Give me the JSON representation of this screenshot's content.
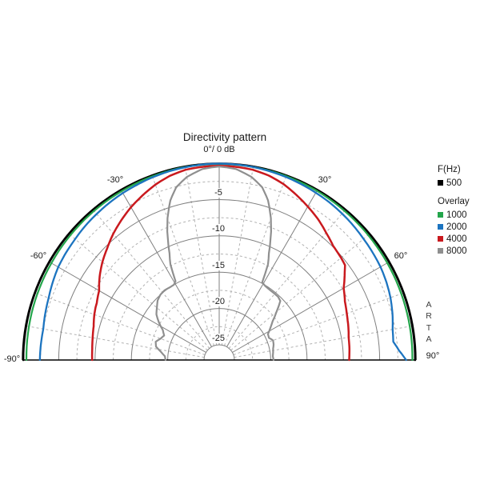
{
  "title": "Directivity pattern",
  "watermark": {
    "letters": [
      "A",
      "R",
      "T",
      "A"
    ]
  },
  "legend": {
    "freq_heading": "F(Hz)",
    "primary": {
      "label": "500",
      "color": "#000000"
    },
    "overlay_heading": "Overlay",
    "overlays": [
      {
        "label": "1000",
        "color": "#23A54B"
      },
      {
        "label": "2000",
        "color": "#1C74C0"
      },
      {
        "label": "4000",
        "color": "#C9191E"
      },
      {
        "label": "8000",
        "color": "#8F8F8F"
      }
    ]
  },
  "chart_data": {
    "type": "line",
    "projection": "half-polar",
    "title": "Directivity pattern",
    "angle_unit": "deg",
    "radial_unit": "dB",
    "radial_range": [
      0,
      -25
    ],
    "legend_position": "right",
    "grid": {
      "circle_solid_step_db": 5,
      "circle_dashed_step_db": 2.5,
      "radial_solid_step_deg": 30,
      "radial_dashed_step_deg": 10
    },
    "db_ticks": [
      {
        "db": -5,
        "text": "-5"
      },
      {
        "db": -10,
        "text": "-10"
      },
      {
        "db": -15,
        "text": "-15"
      },
      {
        "db": -20,
        "text": "-20"
      },
      {
        "db": -25,
        "text": "-25"
      }
    ],
    "angle_labels": [
      {
        "deg": 0,
        "text": "0°/ 0 dB"
      },
      {
        "deg": -30,
        "text": "-30°"
      },
      {
        "deg": 30,
        "text": "30°"
      },
      {
        "deg": -60,
        "text": "-60°"
      },
      {
        "deg": 60,
        "text": "60°"
      },
      {
        "deg": -90,
        "text": "-90°"
      },
      {
        "deg": 90,
        "text": "90°"
      }
    ],
    "series": [
      {
        "name": "500",
        "color": "#000000",
        "width": 2.6,
        "points": [
          [
            -90,
            -0.12
          ],
          [
            -75,
            -0.1
          ],
          [
            -60,
            -0.1
          ],
          [
            -45,
            -0.08
          ],
          [
            -30,
            -0.06
          ],
          [
            -15,
            -0.05
          ],
          [
            0,
            -0.05
          ],
          [
            15,
            -0.05
          ],
          [
            30,
            -0.06
          ],
          [
            45,
            -0.08
          ],
          [
            60,
            -0.1
          ],
          [
            75,
            -0.1
          ],
          [
            90,
            -0.12
          ]
        ]
      },
      {
        "name": "1000",
        "color": "#23A54B",
        "width": 2.2,
        "points": [
          [
            -90,
            -0.55
          ],
          [
            -80,
            -0.5
          ],
          [
            -70,
            -0.45
          ],
          [
            -60,
            -0.42
          ],
          [
            -50,
            -0.35
          ],
          [
            -40,
            -0.3
          ],
          [
            -30,
            -0.25
          ],
          [
            -20,
            -0.18
          ],
          [
            -10,
            -0.12
          ],
          [
            0,
            -0.1
          ],
          [
            10,
            -0.12
          ],
          [
            20,
            -0.15
          ],
          [
            30,
            -0.2
          ],
          [
            40,
            -0.28
          ],
          [
            50,
            -0.33
          ],
          [
            60,
            -0.38
          ],
          [
            70,
            -0.42
          ],
          [
            80,
            -0.45
          ],
          [
            90,
            -0.5
          ]
        ]
      },
      {
        "name": "2000",
        "color": "#1C74C0",
        "width": 2.3,
        "points": [
          [
            -90,
            -2.4
          ],
          [
            -85,
            -2.45
          ],
          [
            -80,
            -2.5
          ],
          [
            -75,
            -2.3
          ],
          [
            -70,
            -2.1
          ],
          [
            -65,
            -1.8
          ],
          [
            -60,
            -1.5
          ],
          [
            -55,
            -1.35
          ],
          [
            -50,
            -1.2
          ],
          [
            -45,
            -1.0
          ],
          [
            -40,
            -0.85
          ],
          [
            -35,
            -0.7
          ],
          [
            -30,
            -0.55
          ],
          [
            -25,
            -0.45
          ],
          [
            -20,
            -0.32
          ],
          [
            -15,
            -0.22
          ],
          [
            -10,
            -0.15
          ],
          [
            -5,
            -0.08
          ],
          [
            0,
            -0.05
          ],
          [
            5,
            -0.08
          ],
          [
            10,
            -0.12
          ],
          [
            15,
            -0.2
          ],
          [
            20,
            -0.28
          ],
          [
            25,
            -0.38
          ],
          [
            30,
            -0.5
          ],
          [
            35,
            -0.62
          ],
          [
            40,
            -0.78
          ],
          [
            45,
            -0.95
          ],
          [
            50,
            -1.15
          ],
          [
            55,
            -1.3
          ],
          [
            60,
            -1.45
          ],
          [
            65,
            -1.7
          ],
          [
            70,
            -2.0
          ],
          [
            75,
            -2.4
          ],
          [
            80,
            -2.85
          ],
          [
            84,
            -3.0
          ],
          [
            87,
            -2.3
          ],
          [
            90,
            -1.35
          ]
        ]
      },
      {
        "name": "4000",
        "color": "#C9191E",
        "width": 2.5,
        "points": [
          [
            -90,
            -9.6
          ],
          [
            -85,
            -9.55
          ],
          [
            -80,
            -9.4
          ],
          [
            -75,
            -9.2
          ],
          [
            -70,
            -8.8
          ],
          [
            -67,
            -8.6
          ],
          [
            -65,
            -8.5
          ],
          [
            -60,
            -8.0
          ],
          [
            -57,
            -7.4
          ],
          [
            -55,
            -7.0
          ],
          [
            -50,
            -6.1
          ],
          [
            -45,
            -5.3
          ],
          [
            -40,
            -4.4
          ],
          [
            -35,
            -3.6
          ],
          [
            -30,
            -2.8
          ],
          [
            -25,
            -2.1
          ],
          [
            -20,
            -1.4
          ],
          [
            -15,
            -0.85
          ],
          [
            -10,
            -0.5
          ],
          [
            -5,
            -0.4
          ],
          [
            0,
            -0.35
          ],
          [
            5,
            -0.4
          ],
          [
            10,
            -0.5
          ],
          [
            15,
            -0.8
          ],
          [
            20,
            -1.3
          ],
          [
            25,
            -2.0
          ],
          [
            30,
            -2.7
          ],
          [
            35,
            -3.4
          ],
          [
            40,
            -4.2
          ],
          [
            45,
            -4.9
          ],
          [
            50,
            -5.2
          ],
          [
            53,
            -5.4
          ],
          [
            55,
            -6.0
          ],
          [
            60,
            -7.3
          ],
          [
            65,
            -8.0
          ],
          [
            70,
            -8.4
          ],
          [
            73,
            -8.6
          ],
          [
            75,
            -8.7
          ],
          [
            80,
            -9.0
          ],
          [
            85,
            -9.1
          ],
          [
            90,
            -9.2
          ]
        ]
      },
      {
        "name": "8000",
        "color": "#8F8F8F",
        "width": 2.2,
        "points": [
          [
            -90,
            -19.7
          ],
          [
            -86,
            -19.6
          ],
          [
            -82,
            -19.0
          ],
          [
            -78,
            -18.2
          ],
          [
            -74,
            -18.0
          ],
          [
            -70,
            -18.5
          ],
          [
            -66,
            -18.8
          ],
          [
            -62,
            -18.3
          ],
          [
            -58,
            -17.3
          ],
          [
            -54,
            -16.4
          ],
          [
            -50,
            -15.9
          ],
          [
            -46,
            -15.3
          ],
          [
            -42,
            -15.0
          ],
          [
            -38,
            -14.9
          ],
          [
            -34,
            -15.0
          ],
          [
            -31,
            -15.0
          ],
          [
            -29,
            -14.7
          ],
          [
            -27,
            -12.3
          ],
          [
            -25,
            -10.9
          ],
          [
            -22,
            -8.0
          ],
          [
            -20,
            -6.3
          ],
          [
            -17,
            -4.1
          ],
          [
            -14,
            -2.6
          ],
          [
            -10,
            -1.5
          ],
          [
            -5,
            -0.7
          ],
          [
            0,
            -0.45
          ],
          [
            5,
            -0.7
          ],
          [
            10,
            -1.5
          ],
          [
            14,
            -2.6
          ],
          [
            17,
            -4.1
          ],
          [
            20,
            -6.3
          ],
          [
            22,
            -8.0
          ],
          [
            25,
            -10.9
          ],
          [
            27,
            -12.3
          ],
          [
            29,
            -14.9
          ],
          [
            32,
            -15.1
          ],
          [
            36,
            -15.2
          ],
          [
            40,
            -15.2
          ],
          [
            43,
            -15.2
          ],
          [
            46,
            -15.4
          ],
          [
            50,
            -16.8
          ],
          [
            54,
            -18.0
          ],
          [
            58,
            -18.8
          ],
          [
            62,
            -19.5
          ],
          [
            66,
            -19.6
          ],
          [
            70,
            -19.2
          ],
          [
            74,
            -19.3
          ],
          [
            78,
            -19.5
          ],
          [
            82,
            -19.6
          ],
          [
            86,
            -19.7
          ],
          [
            90,
            -19.6
          ]
        ]
      }
    ]
  }
}
